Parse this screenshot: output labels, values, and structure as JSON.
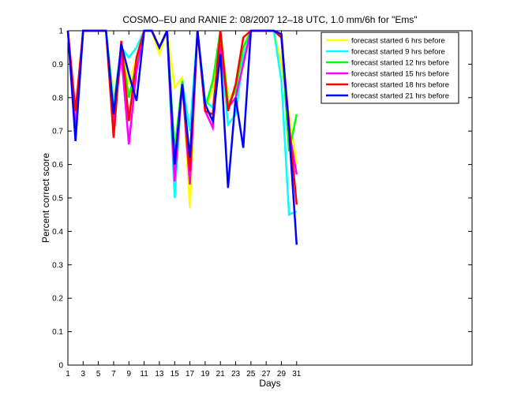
{
  "chart_data": {
    "type": "line",
    "title": "COSMO–EU and RANIE 2: 08/2007 12–18 UTC, 1.0 mm/6h for \"Ems\"",
    "xlabel": "Days",
    "ylabel": "Percent correct score",
    "xlim": [
      1,
      54
    ],
    "ylim": [
      0,
      1
    ],
    "xticks": [
      1,
      3,
      5,
      7,
      9,
      11,
      13,
      15,
      17,
      19,
      21,
      23,
      25,
      27,
      29,
      31
    ],
    "yticks": [
      0,
      0.1,
      0.2,
      0.3,
      0.4,
      0.5,
      0.6,
      0.7,
      0.8,
      0.9,
      1
    ],
    "ytick_labels": [
      "0",
      "0.1",
      "0.2",
      "0.3",
      "0.4",
      "0.5",
      "0.6",
      "0.7",
      "0.8",
      "0.9",
      "1"
    ],
    "grid": false,
    "legend_position": "top-right",
    "x": [
      1,
      2,
      3,
      5,
      6,
      7,
      8,
      9,
      10,
      11,
      12,
      13,
      14,
      15,
      16,
      17,
      18,
      19,
      20,
      21,
      22,
      23,
      24,
      25,
      27,
      28,
      29,
      30,
      31
    ],
    "series": [
      {
        "name": "forecast started 6 hrs before",
        "color": "#ffff00",
        "values": [
          1.0,
          0.74,
          1.0,
          1.0,
          1.0,
          0.8,
          0.94,
          0.84,
          0.92,
          1.0,
          1.0,
          0.93,
          1.0,
          0.83,
          0.86,
          0.47,
          1.0,
          0.77,
          0.82,
          1.0,
          0.8,
          0.82,
          0.98,
          1.0,
          1.0,
          1.0,
          0.9,
          0.75,
          0.6
        ]
      },
      {
        "name": "forecast started 9 hrs before",
        "color": "#00ffff",
        "values": [
          1.0,
          0.73,
          1.0,
          1.0,
          1.0,
          0.78,
          0.95,
          0.92,
          0.95,
          1.0,
          1.0,
          0.95,
          1.0,
          0.5,
          0.85,
          0.7,
          1.0,
          0.79,
          0.77,
          0.97,
          0.72,
          0.75,
          0.92,
          1.0,
          1.0,
          1.0,
          0.85,
          0.45,
          0.46
        ]
      },
      {
        "name": "forecast started 12 hrs before",
        "color": "#00ff00",
        "values": [
          1.0,
          0.74,
          1.0,
          1.0,
          1.0,
          0.76,
          0.95,
          0.8,
          0.9,
          1.0,
          1.0,
          0.95,
          1.0,
          0.64,
          0.85,
          0.6,
          1.0,
          0.77,
          0.85,
          1.0,
          0.78,
          0.82,
          0.95,
          1.0,
          1.0,
          1.0,
          0.98,
          0.64,
          0.75
        ]
      },
      {
        "name": "forecast started 15 hrs before",
        "color": "#ff00ff",
        "values": [
          1.0,
          0.7,
          1.0,
          1.0,
          1.0,
          0.72,
          0.93,
          0.66,
          0.88,
          1.0,
          1.0,
          0.95,
          1.0,
          0.55,
          0.84,
          0.54,
          1.0,
          0.76,
          0.71,
          0.96,
          0.77,
          0.8,
          0.9,
          1.0,
          1.0,
          1.0,
          0.98,
          0.7,
          0.57
        ]
      },
      {
        "name": "forecast started 18 hrs before",
        "color": "#ff0000",
        "values": [
          1.0,
          0.76,
          1.0,
          1.0,
          1.0,
          0.68,
          0.97,
          0.73,
          0.92,
          1.0,
          1.0,
          0.95,
          1.0,
          0.6,
          0.84,
          0.58,
          1.0,
          0.76,
          0.75,
          1.0,
          0.76,
          0.84,
          0.98,
          1.0,
          1.0,
          1.0,
          0.98,
          0.72,
          0.48
        ]
      },
      {
        "name": "forecast started 21 hrs before",
        "color": "#0000ff",
        "values": [
          1.0,
          0.67,
          1.0,
          1.0,
          1.0,
          0.75,
          0.96,
          0.87,
          0.79,
          1.0,
          1.0,
          0.95,
          1.0,
          0.6,
          0.84,
          0.62,
          1.0,
          0.78,
          0.73,
          0.93,
          0.53,
          0.8,
          0.65,
          1.0,
          1.0,
          1.0,
          0.99,
          0.7,
          0.36
        ]
      }
    ]
  }
}
